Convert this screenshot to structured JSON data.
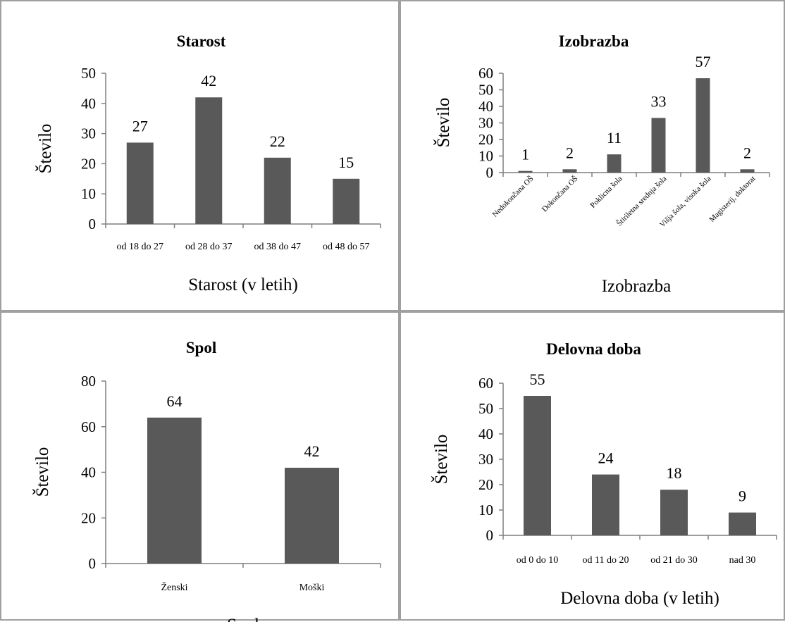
{
  "chart_data": [
    {
      "type": "bar",
      "title": "Starost",
      "xlabel": "Starost (v letih)",
      "ylabel": "Število",
      "categories": [
        "od 18 do 27",
        "od 28 do 37",
        "od 38 do 47",
        "od 48 do 57"
      ],
      "values": [
        27,
        42,
        22,
        15
      ],
      "ylim": [
        0,
        50
      ],
      "yticks": [
        0,
        10,
        20,
        30,
        40,
        50
      ],
      "color": "#595959",
      "grid": false,
      "label_rotation": 0
    },
    {
      "type": "bar",
      "title": "Izobrazba",
      "xlabel": "Izobrazba",
      "ylabel": "Število",
      "categories": [
        "Nedokončana OŠ",
        "Dokončana OŠ",
        "Poklicna šola",
        "Štiriletna srednja šola",
        "Višja šola, visoka šola",
        "Magisterij, doktorat"
      ],
      "values": [
        1,
        2,
        11,
        33,
        57,
        2
      ],
      "ylim": [
        0,
        60
      ],
      "yticks": [
        0,
        10,
        20,
        30,
        40,
        50,
        60
      ],
      "color": "#595959",
      "grid": false,
      "label_rotation": -45
    },
    {
      "type": "bar",
      "title": "Spol",
      "xlabel": "Spol",
      "ylabel": "Število",
      "categories": [
        "Ženski",
        "Moški"
      ],
      "values": [
        64,
        42
      ],
      "ylim": [
        0,
        80
      ],
      "yticks": [
        0,
        20,
        40,
        60,
        80
      ],
      "color": "#595959",
      "grid": false,
      "label_rotation": 0
    },
    {
      "type": "bar",
      "title": "Delovna doba",
      "xlabel": "Delovna doba (v letih)",
      "ylabel": "Število",
      "categories": [
        "od 0 do 10",
        "od 11 do 20",
        "od 21 do 30",
        "nad 30"
      ],
      "values": [
        55,
        24,
        18,
        9
      ],
      "ylim": [
        0,
        60
      ],
      "yticks": [
        0,
        10,
        20,
        30,
        40,
        50,
        60
      ],
      "color": "#595959",
      "grid": false,
      "label_rotation": 0
    }
  ]
}
